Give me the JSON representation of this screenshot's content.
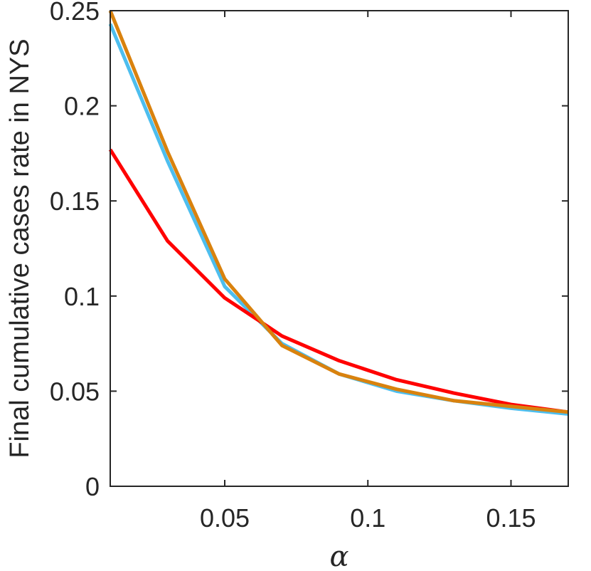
{
  "chart_data": {
    "type": "line",
    "title": "",
    "xlabel": "α",
    "ylabel": "Final cumulative cases rate in NYS",
    "xlim": [
      0.01,
      0.17
    ],
    "ylim": [
      0,
      0.25
    ],
    "xticks": [
      0.05,
      0.1,
      0.15
    ],
    "xtick_labels": [
      "0.05",
      "0.1",
      "0.15"
    ],
    "yticks": [
      0,
      0.05,
      0.1,
      0.15,
      0.2,
      0.25
    ],
    "ytick_labels": [
      "0",
      "0.05",
      "0.1",
      "0.15",
      "0.2",
      "0.25"
    ],
    "grid": false,
    "x": [
      0.01,
      0.03,
      0.05,
      0.07,
      0.09,
      0.11,
      0.13,
      0.15,
      0.17
    ],
    "series": [
      {
        "color": "#4DBEEE",
        "values": [
          0.243,
          0.171,
          0.105,
          0.075,
          0.059,
          0.05,
          0.045,
          0.041,
          0.038
        ]
      },
      {
        "color": "#FF0000",
        "values": [
          0.177,
          0.129,
          0.099,
          0.079,
          0.066,
          0.056,
          0.049,
          0.043,
          0.039
        ]
      },
      {
        "color": "#D9820E",
        "values": [
          0.25,
          0.176,
          0.109,
          0.074,
          0.059,
          0.051,
          0.045,
          0.042,
          0.039
        ]
      }
    ]
  }
}
